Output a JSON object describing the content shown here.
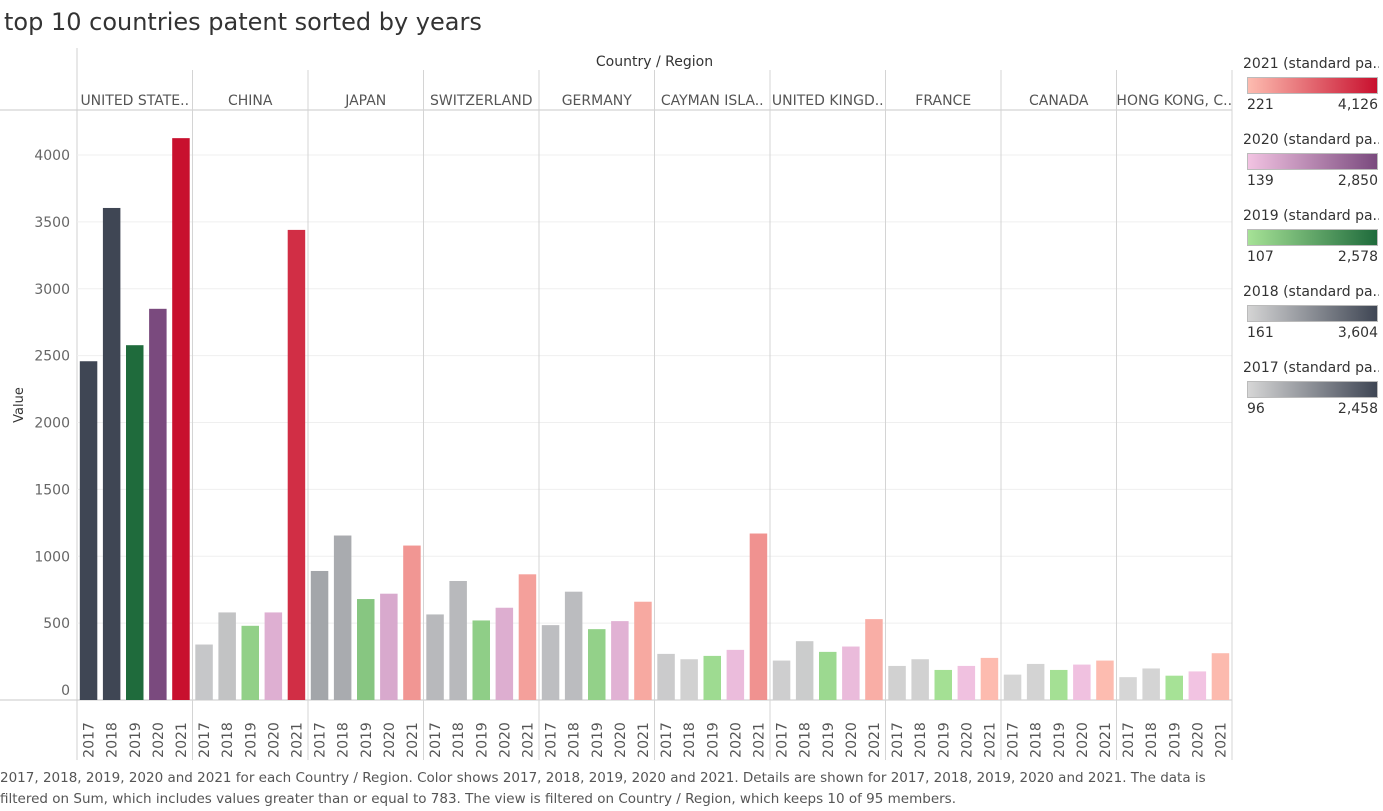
{
  "title": "top 10 countries patent sorted by years",
  "caption": "2017, 2018, 2019, 2020 and 2021 for each Country / Region.  Color shows 2017, 2018, 2019, 2020 and 2021.  Details are shown for 2017, 2018, 2019, 2020 and 2021. The data is filtered on Sum, which includes values greater than or equal to 783. The view is filtered on Country / Region, which keeps 10 of 95 members.",
  "legends": [
    {
      "title": "2021 (standard pa..",
      "min": "221",
      "max": "4,126",
      "from": "#fdbcb0",
      "to": "#c8102e",
      "minValue": 221,
      "maxValue": 4126
    },
    {
      "title": "2020 (standard pa..",
      "min": "139",
      "max": "2,850",
      "from": "#f2c3e2",
      "to": "#7a4a7e",
      "minValue": 139,
      "maxValue": 2850
    },
    {
      "title": "2019 (standard pa..",
      "min": "107",
      "max": "2,578",
      "from": "#a6e296",
      "to": "#1f6b3c",
      "minValue": 107,
      "maxValue": 2578
    },
    {
      "title": "2018 (standard pa..",
      "min": "161",
      "max": "3,604",
      "from": "#d4d4d4",
      "to": "#3f4654",
      "minValue": 161,
      "maxValue": 3604
    },
    {
      "title": "2017 (standard pa..",
      "min": "96",
      "max": "2,458",
      "from": "#d6d6d6",
      "to": "#3f4654",
      "minValue": 96,
      "maxValue": 2458
    }
  ],
  "chart_data": {
    "type": "bar",
    "title": "top 10 countries patent sorted by years",
    "column_header": "Country / Region",
    "ylabel": "Value",
    "ylim": [
      0,
      4400
    ],
    "yticks": [
      0,
      500,
      1000,
      1500,
      2000,
      2500,
      3000,
      3500,
      4000
    ],
    "categories": [
      "2017",
      "2018",
      "2019",
      "2020",
      "2021"
    ],
    "groups": [
      {
        "label": "UNITED STATE..",
        "values": [
          2458,
          3604,
          2578,
          2850,
          4126
        ]
      },
      {
        "label": "CHINA",
        "values": [
          340,
          580,
          480,
          580,
          3440
        ]
      },
      {
        "label": "JAPAN",
        "values": [
          890,
          1155,
          680,
          720,
          1080
        ]
      },
      {
        "label": "SWITZERLAND",
        "values": [
          565,
          815,
          520,
          615,
          865
        ]
      },
      {
        "label": "GERMANY",
        "values": [
          485,
          735,
          455,
          515,
          660
        ]
      },
      {
        "label": "CAYMAN ISLA..",
        "values": [
          270,
          230,
          255,
          300,
          1170
        ]
      },
      {
        "label": "UNITED KINGD..",
        "values": [
          220,
          365,
          285,
          325,
          530
        ]
      },
      {
        "label": "FRANCE",
        "values": [
          180,
          230,
          150,
          180,
          240
        ]
      },
      {
        "label": "CANADA",
        "values": [
          115,
          195,
          150,
          190,
          220
        ]
      },
      {
        "label": "HONG KONG, C..",
        "values": [
          96,
          161,
          107,
          139,
          275
        ]
      }
    ],
    "grid": true,
    "legend_position": "right"
  }
}
